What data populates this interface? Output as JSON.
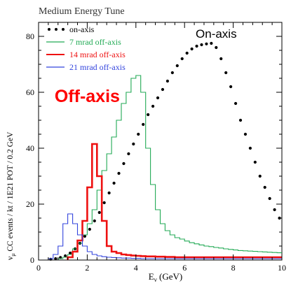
{
  "chart_data": {
    "type": "line",
    "title": "Medium Energy Tune",
    "xlabel": "E_ν (GeV)",
    "ylabel": "ν_μ CC events / kt / 1E21 POT / 0.2 GeV",
    "xlim": [
      0,
      10
    ],
    "ylim": [
      0,
      85
    ],
    "x_ticks": [
      0,
      2,
      4,
      6,
      8,
      10
    ],
    "y_ticks": [
      0,
      20,
      40,
      60,
      80
    ],
    "legend_position": "top-left",
    "grid": false,
    "series": [
      {
        "name": "on-axis",
        "style": "dots",
        "color": "#000000",
        "x": [
          0.5,
          0.7,
          0.9,
          1.1,
          1.3,
          1.5,
          1.7,
          1.9,
          2.1,
          2.3,
          2.5,
          2.7,
          2.9,
          3.1,
          3.3,
          3.5,
          3.7,
          3.9,
          4.1,
          4.3,
          4.5,
          4.7,
          4.9,
          5.1,
          5.3,
          5.5,
          5.7,
          5.9,
          6.1,
          6.3,
          6.5,
          6.7,
          6.9,
          7.1,
          7.3,
          7.5,
          7.7,
          7.9,
          8.1,
          8.3,
          8.5,
          8.7,
          8.9,
          9.1,
          9.3,
          9.5,
          9.7,
          9.9
        ],
        "y": [
          0.3,
          0.5,
          0.9,
          1.5,
          2.5,
          4,
          6,
          8.5,
          11,
          14,
          17,
          20.5,
          24,
          27.5,
          31,
          34.5,
          38,
          41.5,
          45,
          48.5,
          52,
          55,
          58,
          61,
          64,
          67,
          69.5,
          72,
          74,
          75.5,
          76.5,
          77,
          77.3,
          77.5,
          76,
          72,
          67,
          62,
          56,
          50,
          45,
          40,
          35,
          30,
          26,
          22,
          18,
          15
        ]
      },
      {
        "name": "7 mrad off-axis",
        "style": "step",
        "color": "#22aa55",
        "edges": [
          0.8,
          1.0,
          1.2,
          1.4,
          1.6,
          1.8,
          2.0,
          2.2,
          2.4,
          2.6,
          2.8,
          3.0,
          3.2,
          3.4,
          3.6,
          3.8,
          4.0,
          4.2,
          4.4,
          4.6,
          4.8,
          5.0,
          5.2,
          5.4,
          5.6,
          5.8,
          6.0,
          6.2,
          6.4,
          6.6,
          6.8,
          7.0,
          7.2,
          7.4,
          7.6,
          7.8,
          8.0,
          8.2,
          8.4,
          8.6,
          8.8,
          9.0,
          9.2,
          9.4,
          9.6,
          9.8,
          10.0
        ],
        "values": [
          0.5,
          1,
          2,
          4,
          6,
          9,
          13,
          18,
          25,
          32,
          38,
          44,
          50,
          56,
          60,
          65,
          66,
          60,
          40,
          27,
          18,
          13,
          10.5,
          9,
          8,
          7.5,
          6.8,
          6.2,
          5.8,
          5.4,
          5,
          4.8,
          4.5,
          4.3,
          4,
          3.8,
          3.6,
          3.4,
          3.3,
          3.2,
          3.1,
          3,
          2.9,
          2.8,
          2.7,
          2.6
        ]
      },
      {
        "name": "14 mrad off-axis",
        "style": "step",
        "color": "#ee1111",
        "edges": [
          1.2,
          1.4,
          1.6,
          1.8,
          2.0,
          2.2,
          2.4,
          2.6,
          2.8,
          3.0,
          3.2,
          3.4,
          3.6,
          3.8,
          4.0,
          4.2,
          4.4,
          4.6,
          4.8,
          5.0,
          5.2,
          5.4,
          5.6,
          5.8,
          6.0,
          6.2,
          6.4,
          6.6,
          6.8,
          7.0,
          7.2,
          7.4,
          7.6,
          7.8,
          8.0,
          8.2,
          8.4,
          8.6,
          8.8,
          9.0,
          9.2,
          9.4,
          9.6,
          9.8,
          10.0
        ],
        "values": [
          1,
          3,
          7,
          14,
          26,
          41.5,
          30,
          14,
          5,
          3,
          2.5,
          2,
          1.8,
          1.6,
          1.5,
          1.4,
          1.3,
          1.3,
          1.2,
          1.2,
          1.1,
          1.1,
          1,
          1,
          1,
          1,
          1,
          1,
          1,
          1,
          1,
          1,
          1,
          1,
          1,
          1,
          1,
          1,
          1,
          1,
          1,
          1,
          1,
          1
        ]
      },
      {
        "name": "21 mrad off-axis",
        "style": "step",
        "color": "#3344dd",
        "edges": [
          0.4,
          0.6,
          0.8,
          1.0,
          1.2,
          1.4,
          1.6,
          1.8,
          2.0,
          2.2,
          2.4,
          2.6,
          2.8,
          3.0,
          3.2,
          3.4,
          3.6,
          3.8,
          4.0,
          4.2,
          4.4,
          4.6,
          4.8,
          5.0,
          5.5,
          6.0,
          6.5,
          7.0,
          7.5,
          8.0,
          8.5,
          9.0,
          9.5,
          10.0
        ],
        "values": [
          0.5,
          2,
          5,
          13,
          16.5,
          13,
          9,
          5,
          3,
          2,
          1.5,
          1.2,
          1,
          0.9,
          0.8,
          0.7,
          0.7,
          0.6,
          0.6,
          0.5,
          0.5,
          0.5,
          0.5,
          0.5,
          0.5,
          0.5,
          0.5,
          0.5,
          0.5,
          0.5,
          0.5,
          0.5,
          0.5
        ]
      }
    ],
    "annotations": [
      {
        "text": "Off-axis",
        "color": "#ff0000",
        "x": 2.0,
        "y": 59
      },
      {
        "text": "On-axis",
        "color": "#000000",
        "x": 7.3,
        "y": 81
      }
    ]
  }
}
